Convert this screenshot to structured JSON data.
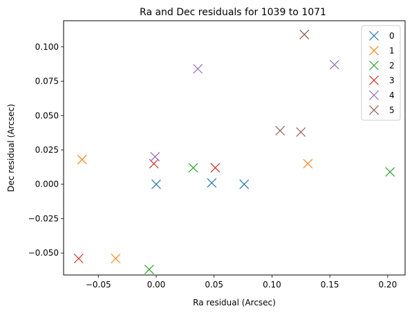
{
  "chart_data": {
    "type": "scatter",
    "title": "Ra and Dec residuals for 1039 to 1071",
    "xlabel": "Ra residual (Arcsec)",
    "ylabel": "Dec residual (Arcsec)",
    "xlim": [
      -0.08,
      0.215
    ],
    "ylim": [
      -0.066,
      0.119
    ],
    "xticks": [
      -0.05,
      0.0,
      0.05,
      0.1,
      0.15,
      0.2
    ],
    "xtick_labels": [
      "−0.05",
      "0.00",
      "0.05",
      "0.10",
      "0.15",
      "0.20"
    ],
    "yticks": [
      -0.05,
      -0.025,
      0.0,
      0.025,
      0.05,
      0.075,
      0.1
    ],
    "ytick_labels": [
      "−0.050",
      "−0.025",
      "0.000",
      "0.025",
      "0.050",
      "0.075",
      "0.100"
    ],
    "grid": false,
    "legend_position": "top-right",
    "marker": "x",
    "series": [
      {
        "name": "0",
        "color": "#1f77b4",
        "points": [
          [
            0.0,
            0.0
          ],
          [
            0.048,
            0.001
          ],
          [
            0.076,
            0.0
          ]
        ]
      },
      {
        "name": "1",
        "color": "#ff7f0e",
        "points": [
          [
            -0.064,
            0.018
          ],
          [
            -0.035,
            -0.054
          ],
          [
            0.131,
            0.015
          ]
        ]
      },
      {
        "name": "2",
        "color": "#2ca02c",
        "points": [
          [
            -0.006,
            -0.062
          ],
          [
            0.032,
            0.012
          ],
          [
            0.202,
            0.009
          ]
        ]
      },
      {
        "name": "3",
        "color": "#d62728",
        "points": [
          [
            -0.067,
            -0.054
          ],
          [
            -0.002,
            0.015
          ],
          [
            0.051,
            0.012
          ]
        ]
      },
      {
        "name": "4",
        "color": "#9467bd",
        "points": [
          [
            -0.001,
            0.02
          ],
          [
            0.036,
            0.084
          ],
          [
            0.154,
            0.087
          ]
        ]
      },
      {
        "name": "5",
        "color": "#8c564b",
        "points": [
          [
            0.107,
            0.039
          ],
          [
            0.125,
            0.038
          ],
          [
            0.128,
            0.109
          ]
        ]
      }
    ]
  }
}
